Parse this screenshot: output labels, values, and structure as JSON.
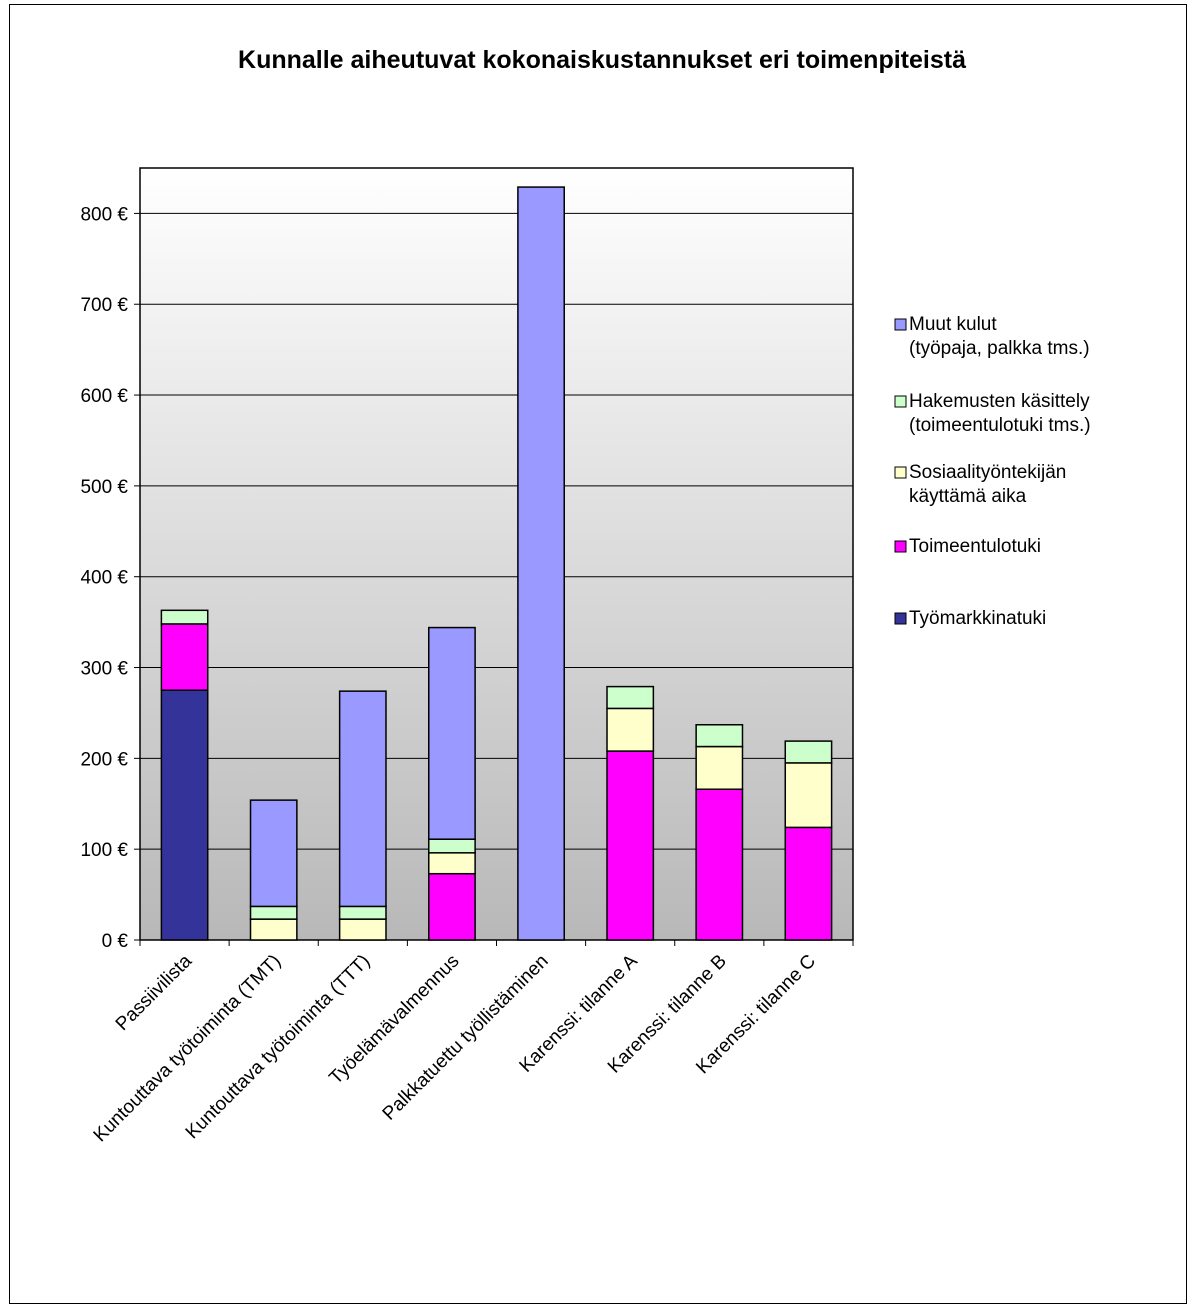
{
  "chart_data": {
    "type": "bar",
    "stacked": true,
    "title": "Kunnalle aiheutuvat kokonaiskustannukset eri toimenpiteistä",
    "xlabel": "",
    "ylabel": "",
    "ylim": [
      0,
      850
    ],
    "yticks": [
      0,
      100,
      200,
      300,
      400,
      500,
      600,
      700,
      800
    ],
    "ytick_labels": [
      "0 €",
      "100 €",
      "200 €",
      "300 €",
      "400 €",
      "500 €",
      "600 €",
      "700 €",
      "800 €"
    ],
    "grid": true,
    "legend_position": "right",
    "categories": [
      "Passiivilista",
      "Kuntouttava työtoiminta (TMT)",
      "Kuntouttava työtoiminta (TTT)",
      "Työelämävalmennus",
      "Palkkatuettu työllistäminen",
      "Karenssi: tilanne A",
      "Karenssi: tilanne B",
      "Karenssi: tilanne C"
    ],
    "series": [
      {
        "name": "Työmarkkinatuki",
        "color": "#333399",
        "values": [
          275,
          0,
          0,
          0,
          0,
          0,
          0,
          0
        ]
      },
      {
        "name": "Toimeentulotuki",
        "color": "#ff00ff",
        "values": [
          73,
          0,
          0,
          73,
          0,
          208,
          166,
          124
        ]
      },
      {
        "name": "Sosiaalityöntekijän käyttämä aika",
        "color": "#ffffcc",
        "values": [
          0,
          23,
          23,
          23,
          0,
          47,
          47,
          71
        ]
      },
      {
        "name": "Hakemusten käsittely (toimeentulotuki tms.)",
        "color": "#ccffcc",
        "values": [
          15,
          14,
          14,
          15,
          0,
          24,
          24,
          24
        ]
      },
      {
        "name": "Muut kulut (työpaja, palkka tms.)",
        "color": "#9999ff",
        "values": [
          0,
          117,
          237,
          233,
          829,
          0,
          0,
          0
        ]
      }
    ],
    "legend": [
      {
        "lines": [
          "Muut kulut",
          "(työpaja, palkka tms.)"
        ],
        "series": 4
      },
      {
        "lines": [
          "Hakemusten käsittely",
          "(toimeentulotuki tms.)"
        ],
        "series": 3
      },
      {
        "lines": [
          "Sosiaalityöntekijän",
          "käyttämä aika"
        ],
        "series": 2
      },
      {
        "lines": [
          "Toimeentulotuki"
        ],
        "series": 1
      },
      {
        "lines": [
          "Työmarkkinatuki"
        ],
        "series": 0
      }
    ]
  }
}
